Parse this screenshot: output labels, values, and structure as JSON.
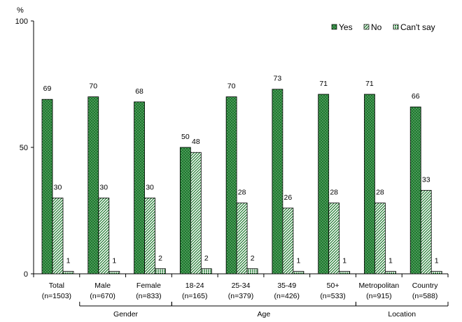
{
  "chart_data": {
    "type": "bar",
    "y_unit": "%",
    "ylim": [
      0,
      100
    ],
    "yticks": [
      0,
      50,
      100
    ],
    "categories": [
      {
        "label": "Total",
        "n": "(n=1503)"
      },
      {
        "label": "Male",
        "n": "(n=670)"
      },
      {
        "label": "Female",
        "n": "(n=833)"
      },
      {
        "label": "18-24",
        "n": "(n=165)"
      },
      {
        "label": "25-34",
        "n": "(n=379)"
      },
      {
        "label": "35-49",
        "n": "(n=426)"
      },
      {
        "label": "50+",
        "n": "(n=533)"
      },
      {
        "label": "Metropolitan",
        "n": "(n=915)"
      },
      {
        "label": "Country",
        "n": "(n=588)"
      }
    ],
    "groups": [
      {
        "label": "Gender",
        "from": 1,
        "to": 2
      },
      {
        "label": "Age",
        "from": 3,
        "to": 6
      },
      {
        "label": "Location",
        "from": 7,
        "to": 8
      }
    ],
    "series": [
      {
        "name": "Yes",
        "pattern": "dots",
        "color": "#1e7a2e",
        "values": [
          69,
          70,
          68,
          50,
          70,
          73,
          71,
          71,
          66
        ]
      },
      {
        "name": "No",
        "pattern": "diagonal",
        "color": "#1e7a2e",
        "values": [
          30,
          30,
          30,
          48,
          28,
          26,
          28,
          28,
          33
        ]
      },
      {
        "name": "Can't say",
        "pattern": "grid",
        "color": "#1e7a2e",
        "values": [
          1,
          1,
          2,
          2,
          2,
          1,
          1,
          1,
          1
        ]
      }
    ],
    "legend_position": "top-right",
    "grid": false
  }
}
